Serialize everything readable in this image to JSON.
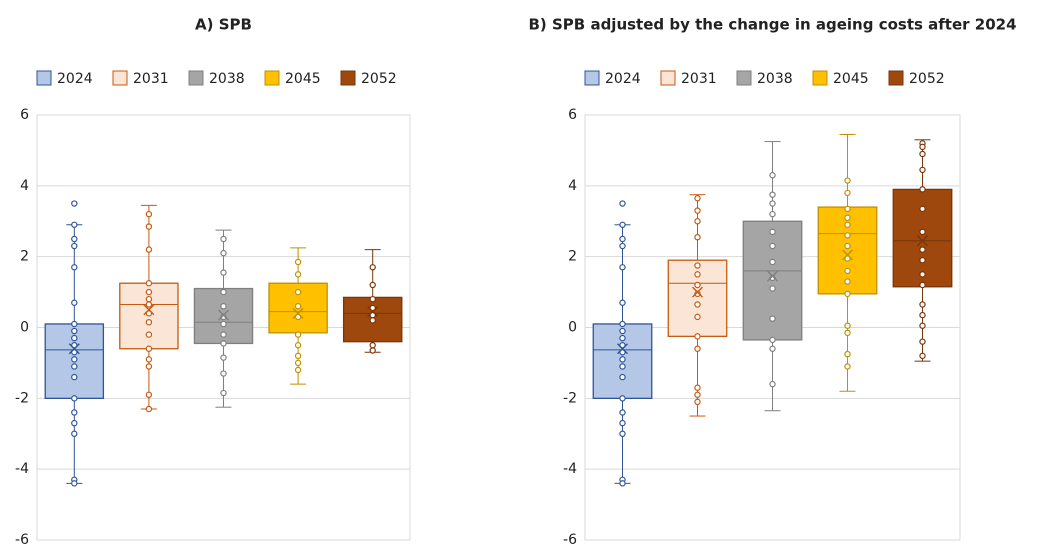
{
  "chart_data": [
    {
      "type": "box",
      "title": "A) SPB",
      "ylim": [
        -6,
        6
      ],
      "yticks": [
        -6,
        -4,
        -2,
        0,
        2,
        4,
        6
      ],
      "grid": true,
      "legend": "top",
      "series": [
        {
          "name": "2024",
          "color": "#b4c7e7",
          "line_color": "#2f5597",
          "min": -4.4,
          "q1": -2.0,
          "median": -0.63,
          "q3": 0.1,
          "max": 2.9,
          "mean": -0.6,
          "points": [
            3.5,
            2.9,
            2.5,
            2.3,
            1.7,
            0.7,
            0.1,
            -0.1,
            -0.3,
            -0.5,
            -0.7,
            -0.9,
            -1.1,
            -1.4,
            -2.0,
            -2.4,
            -2.7,
            -3.0,
            -4.3,
            -4.4
          ]
        },
        {
          "name": "2031",
          "color": "#fbe5d6",
          "line_color": "#c55a11",
          "min": -2.3,
          "q1": -0.6,
          "median": 0.65,
          "q3": 1.25,
          "max": 3.45,
          "mean": 0.5,
          "points": [
            3.2,
            2.85,
            2.2,
            1.25,
            1.0,
            0.8,
            0.65,
            0.4,
            0.15,
            -0.2,
            -0.6,
            -0.9,
            -1.1,
            -1.9,
            -2.3
          ]
        },
        {
          "name": "2038",
          "color": "#a5a5a5",
          "line_color": "#7f7f7f",
          "min": -2.25,
          "q1": -0.45,
          "median": 0.15,
          "q3": 1.1,
          "max": 2.75,
          "mean": 0.35,
          "points": [
            2.5,
            2.1,
            1.55,
            1.0,
            0.6,
            0.3,
            0.1,
            -0.2,
            -0.45,
            -0.85,
            -1.3,
            -1.85
          ]
        },
        {
          "name": "2045",
          "color": "#ffc000",
          "line_color": "#bf9000",
          "min": -1.6,
          "q1": -0.15,
          "median": 0.45,
          "q3": 1.25,
          "max": 2.25,
          "mean": 0.4,
          "points": [
            1.85,
            1.5,
            1.0,
            0.6,
            0.3,
            -0.2,
            -0.5,
            -0.8,
            -1.0,
            -1.2
          ]
        },
        {
          "name": "2052",
          "color": "#9e480e",
          "line_color": "#7a350a",
          "min": -0.7,
          "q1": -0.4,
          "median": 0.4,
          "q3": 0.85,
          "max": 2.2,
          "mean": 0.45,
          "points": [
            1.7,
            1.2,
            0.8,
            0.55,
            0.35,
            0.2,
            -0.5,
            -0.65
          ]
        }
      ]
    },
    {
      "type": "box",
      "title": "B) SPB adjusted by the change in ageing costs after 2024",
      "ylim": [
        -6,
        6
      ],
      "yticks": [
        -6,
        -4,
        -2,
        0,
        2,
        4,
        6
      ],
      "grid": true,
      "legend": "top",
      "series": [
        {
          "name": "2024",
          "color": "#b4c7e7",
          "line_color": "#2f5597",
          "min": -4.4,
          "q1": -2.0,
          "median": -0.63,
          "q3": 0.1,
          "max": 2.9,
          "mean": -0.6,
          "points": [
            3.5,
            2.9,
            2.5,
            2.3,
            1.7,
            0.7,
            0.1,
            -0.1,
            -0.3,
            -0.5,
            -0.7,
            -0.9,
            -1.1,
            -1.4,
            -2.0,
            -2.4,
            -2.7,
            -3.0,
            -4.3,
            -4.4
          ]
        },
        {
          "name": "2031",
          "color": "#fbe5d6",
          "line_color": "#c55a11",
          "min": -2.5,
          "q1": -0.25,
          "median": 1.25,
          "q3": 1.9,
          "max": 3.75,
          "mean": 1.0,
          "points": [
            3.65,
            3.3,
            3.0,
            2.55,
            1.75,
            1.5,
            1.2,
            0.95,
            0.65,
            0.3,
            -0.25,
            -0.6,
            -1.7,
            -1.9,
            -2.1
          ]
        },
        {
          "name": "2038",
          "color": "#a5a5a5",
          "line_color": "#7f7f7f",
          "min": -2.35,
          "q1": -0.35,
          "median": 1.6,
          "q3": 3.0,
          "max": 5.25,
          "mean": 1.45,
          "points": [
            4.3,
            3.75,
            3.5,
            3.2,
            2.7,
            2.3,
            1.85,
            1.4,
            1.1,
            0.25,
            -0.35,
            -0.6,
            -1.6
          ]
        },
        {
          "name": "2045",
          "color": "#ffc000",
          "line_color": "#bf9000",
          "min": -1.8,
          "q1": 0.95,
          "median": 2.65,
          "q3": 3.4,
          "max": 5.45,
          "mean": 2.05,
          "points": [
            4.15,
            3.8,
            3.35,
            3.1,
            2.9,
            2.6,
            2.3,
            1.95,
            1.6,
            1.3,
            0.95,
            0.05,
            -0.15,
            -0.75,
            -1.1
          ]
        },
        {
          "name": "2052",
          "color": "#9e480e",
          "line_color": "#7a350a",
          "min": -0.95,
          "q1": 1.15,
          "median": 2.45,
          "q3": 3.9,
          "max": 5.3,
          "mean": 2.45,
          "points": [
            5.2,
            5.1,
            4.9,
            4.45,
            3.9,
            3.35,
            2.7,
            2.2,
            1.9,
            1.5,
            1.2,
            0.65,
            0.35,
            0.05,
            -0.4,
            -0.8
          ]
        }
      ]
    }
  ]
}
